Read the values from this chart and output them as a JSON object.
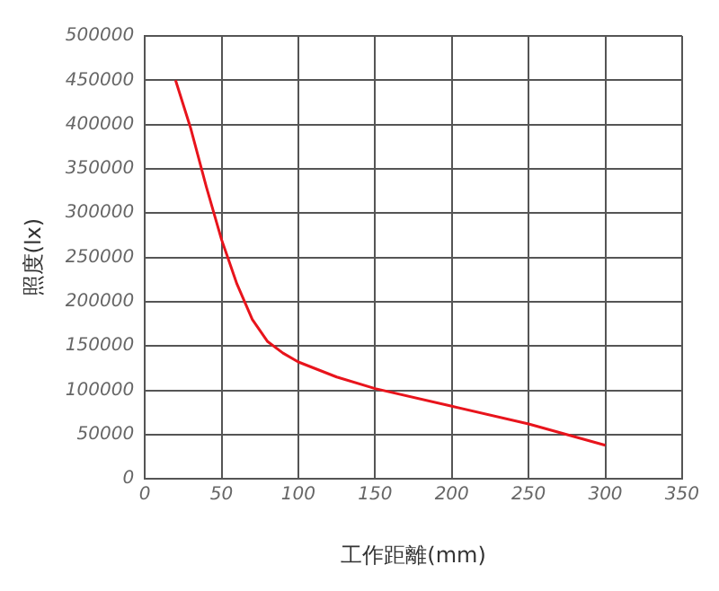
{
  "chart_data": {
    "type": "line",
    "xlabel": "工作距離(mm)",
    "ylabel": "照度(lx)",
    "x": [
      20,
      30,
      40,
      50,
      60,
      70,
      80,
      90,
      100,
      125,
      150,
      200,
      250,
      300
    ],
    "series": [
      {
        "color": "#e8141c",
        "values": [
          450000,
          395000,
          330000,
          270000,
          220000,
          180000,
          155000,
          142000,
          132000,
          115000,
          102000,
          82000,
          62000,
          38000
        ]
      }
    ],
    "xlim": [
      0,
      350
    ],
    "xticks": [
      0,
      50,
      100,
      150,
      200,
      250,
      300,
      350
    ],
    "ylim": [
      0,
      500000
    ],
    "yticks": [
      0,
      50000,
      100000,
      150000,
      200000,
      250000,
      300000,
      350000,
      400000,
      450000,
      500000
    ],
    "grid": true,
    "legend": false,
    "marker": "none",
    "line_style": "solid"
  }
}
